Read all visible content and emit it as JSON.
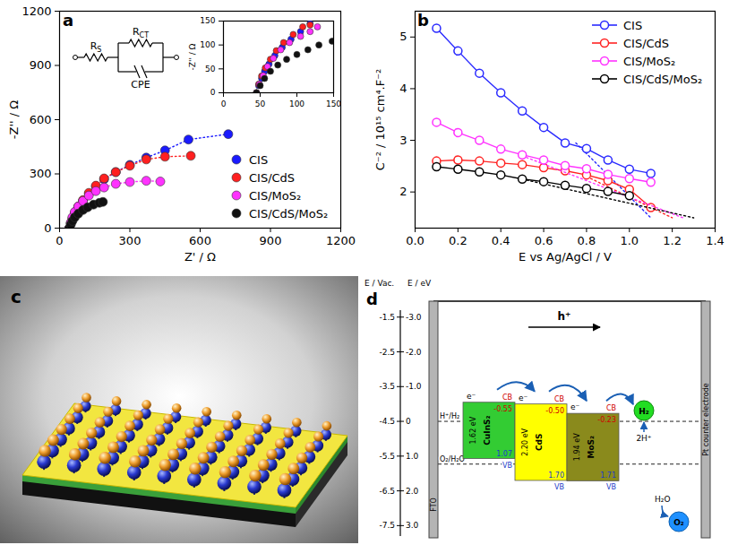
{
  "chart_data": [
    {
      "title": "a",
      "type": "scatter",
      "xlabel": "Z' / Ω",
      "ylabel": "-Z'' / Ω",
      "xlim": [
        0,
        1200
      ],
      "ylim": [
        0,
        1200
      ],
      "xticks": [
        0,
        300,
        600,
        900,
        1200
      ],
      "yticks": [
        0,
        300,
        600,
        900,
        1200
      ],
      "legend": "lower right",
      "marker": "circle",
      "line_style": "dotted",
      "annotations": [
        {
          "text": "R",
          "subscript": "S"
        },
        {
          "text": "R",
          "subscript": "CT"
        },
        {
          "text": "CPE"
        }
      ],
      "series": [
        {
          "name": "CIS",
          "color": "#1a1aff",
          "x": [
            42,
            48,
            55,
            65,
            80,
            100,
            125,
            155,
            190,
            240,
            300,
            370,
            450,
            550,
            720
          ],
          "values": [
            0,
            25,
            50,
            80,
            115,
            150,
            190,
            230,
            270,
            310,
            350,
            390,
            430,
            490,
            520
          ]
        },
        {
          "name": "CIS/CdS",
          "color": "#ff2020",
          "x": [
            42,
            48,
            55,
            65,
            80,
            100,
            125,
            155,
            190,
            240,
            300,
            370,
            450,
            560
          ],
          "values": [
            0,
            28,
            55,
            85,
            120,
            155,
            195,
            235,
            275,
            310,
            345,
            380,
            395,
            400
          ]
        },
        {
          "name": "CIS/MoS₂",
          "color": "#ff33ff",
          "x": [
            42,
            48,
            55,
            65,
            80,
            100,
            125,
            155,
            190,
            240,
            300,
            370,
            430
          ],
          "values": [
            0,
            30,
            60,
            90,
            120,
            150,
            180,
            205,
            225,
            245,
            255,
            262,
            258
          ]
        },
        {
          "name": "CIS/CdS/MoS₂",
          "color": "#111111",
          "x": [
            42,
            48,
            55,
            65,
            80,
            100,
            120,
            145,
            170,
            185
          ],
          "values": [
            0,
            20,
            40,
            60,
            80,
            100,
            115,
            130,
            140,
            145
          ]
        }
      ]
    },
    {
      "type": "scatter",
      "ylabel": "-Z'' / Ω",
      "xlim": [
        0,
        150
      ],
      "ylim": [
        0,
        150
      ],
      "xticks": [
        0,
        50,
        100,
        150
      ],
      "yticks": [
        0,
        50,
        100,
        150
      ],
      "marker": "circle",
      "series": [
        {
          "name": "CIS",
          "color": "#1a1aff",
          "x": [
            45,
            48,
            52,
            56,
            62,
            70,
            80,
            92,
            105,
            118
          ],
          "values": [
            0,
            15,
            30,
            45,
            60,
            78,
            95,
            112,
            128,
            145
          ]
        },
        {
          "name": "CIS/CdS",
          "color": "#ff2020",
          "x": [
            45,
            48,
            52,
            57,
            64,
            72,
            82,
            95,
            108,
            118
          ],
          "values": [
            0,
            18,
            35,
            52,
            70,
            88,
            105,
            122,
            138,
            142
          ]
        },
        {
          "name": "CIS/MoS₂",
          "color": "#ff33ff",
          "x": [
            45,
            49,
            54,
            60,
            68,
            78,
            90,
            105,
            118,
            128
          ],
          "values": [
            0,
            18,
            36,
            55,
            72,
            90,
            105,
            118,
            128,
            138
          ]
        },
        {
          "name": "CIS/CdS/MoS₂",
          "color": "#111111",
          "x": [
            45,
            50,
            56,
            64,
            74,
            86,
            100,
            115,
            130,
            148
          ],
          "values": [
            0,
            15,
            30,
            45,
            58,
            70,
            80,
            90,
            100,
            108
          ]
        }
      ]
    },
    {
      "title": "b",
      "type": "line",
      "xlabel": "E vs Ag/AgCl / V",
      "ylabel": "C⁻² / 10¹⁵ cm⁴.F⁻²",
      "xlim": [
        0,
        1.4
      ],
      "ylim": [
        1.3,
        5.5
      ],
      "xticks": [
        {
          "value": 0,
          "label": "0.0"
        },
        0.2,
        0.4,
        0.6,
        0.8,
        {
          "value": 1,
          "label": "1.0"
        },
        1.2,
        1.4
      ],
      "yticks": [
        2,
        3,
        4,
        5
      ],
      "legend": "upper right",
      "marker": "circle_open",
      "line_style": "solid",
      "x": [
        0.1,
        0.2,
        0.3,
        0.4,
        0.5,
        0.6,
        0.7,
        0.8,
        0.9,
        1.0,
        1.1
      ],
      "series": [
        {
          "name": "CIS",
          "color": "#2a2aff",
          "values": [
            5.17,
            4.73,
            4.3,
            3.92,
            3.57,
            3.25,
            2.95,
            2.84,
            2.62,
            2.44,
            2.36
          ],
          "fit_x": [
            0.75,
            1.1
          ],
          "fit_values": [
            2.95,
            1.5
          ]
        },
        {
          "name": "CIS/CdS",
          "color": "#ff2222",
          "values": [
            2.6,
            2.62,
            2.6,
            2.56,
            2.53,
            2.47,
            2.41,
            2.33,
            2.22,
            2.05,
            1.7
          ],
          "fit_x": [
            0.8,
            1.2
          ],
          "fit_values": [
            2.3,
            1.5
          ]
        },
        {
          "name": "CIS/MoS₂",
          "color": "#ff33ff",
          "values": [
            3.35,
            3.15,
            3.0,
            2.83,
            2.72,
            2.62,
            2.51,
            2.45,
            2.34,
            2.26,
            2.19
          ],
          "fit_x": [
            0.5,
            1.25
          ],
          "fit_values": [
            2.7,
            1.5
          ]
        },
        {
          "name": "CIS/CdS/MoS₂",
          "color": "#000000",
          "values": [
            2.49,
            2.44,
            2.39,
            2.33,
            2.25,
            2.2,
            2.13,
            2.07,
            2.01,
            1.93,
            null
          ],
          "fit_x": [
            0.5,
            1.3
          ],
          "fit_values": [
            2.25,
            1.5
          ]
        }
      ]
    }
  ],
  "figure": {
    "panel_c": {
      "label": "c"
    },
    "panel_d": {
      "label": "d",
      "left_axis_title": "E / Vac.",
      "right_axis_title": "E / eV",
      "vac_lim": [
        -1.3,
        -7.8
      ],
      "vac_ticks": [
        -1.5,
        -2.5,
        -3.5,
        -4.5,
        -5.5,
        -6.5,
        -7.5
      ],
      "ev_lim": [
        -3.2,
        3.3
      ],
      "ev_ticks": [
        {
          "value": -3,
          "label": "-3.0"
        },
        {
          "value": -2,
          "label": "-2.0"
        },
        {
          "value": -1,
          "label": "-1.0"
        },
        0,
        {
          "value": 1,
          "label": "1.0"
        },
        {
          "value": 2,
          "label": "2.0"
        },
        {
          "value": 3,
          "label": "3.0"
        }
      ],
      "left_electrode": "FTO",
      "right_electrode": "Pt counter electrode",
      "hole_label": "h⁺",
      "electron_label": "e⁻",
      "cb_label": "CB",
      "vb_label": "VB",
      "levels": [
        {
          "label": "H⁺/H₂",
          "value": 0
        },
        {
          "label": "O₂/H₂O",
          "value": 1.23
        }
      ],
      "materials": [
        {
          "name": "CuInS₂",
          "gap_label": "1.62 eV",
          "cb": -0.55,
          "vb": 1.07,
          "color": "#33cc33"
        },
        {
          "name": "CdS",
          "gap_label": "2.20 eV",
          "cb": {
            "value": -0.5,
            "label": "-0.50"
          },
          "vb": {
            "value": 1.7,
            "label": "1.70"
          },
          "color": "#ffff00"
        },
        {
          "name": "MoS₂",
          "gap_label": "1.94 eV",
          "cb": -0.23,
          "vb": 1.71,
          "color": "#8a8a1c"
        }
      ],
      "products": {
        "hydrogen": "H₂",
        "protons": "2H⁺",
        "water": "H₂O",
        "oxygen": "O₂"
      }
    }
  }
}
